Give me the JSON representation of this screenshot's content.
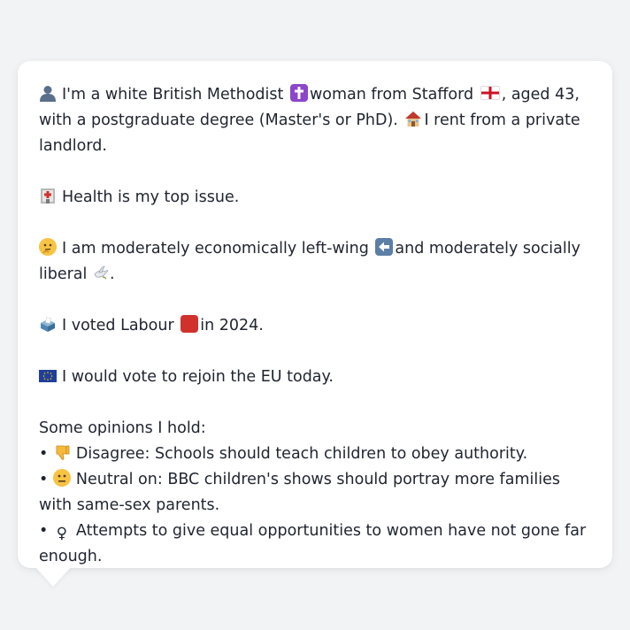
{
  "profile": {
    "intro_text_1": "I'm a white British Methodist",
    "intro_text_2": "woman from Stafford",
    "intro_text_3": ", aged 43, with a postgraduate degree (Master's or PhD).",
    "intro_text_4": "I rent from a private landlord.",
    "issue_text": "Health is my top issue.",
    "ideology_text_1": "I am moderately economically left-wing",
    "ideology_text_2": "and moderately socially liberal",
    "ideology_text_3": ".",
    "vote_text_1": "I voted Labour",
    "vote_text_2": "in 2024.",
    "eu_text": "I would vote to rejoin the EU today.",
    "opinions_heading": "Some opinions I hold:",
    "bullet": "•",
    "opinion_1": "Disagree: Schools should teach children to obey authority.",
    "opinion_2": "Neutral on: BBC children's shows should portray more families with same-sex parents.",
    "opinion_3": "Attempts to give equal opportunities to women have not gone far enough."
  },
  "icons": {
    "person": "person-silhouette-icon",
    "religion": "latin-cross-icon",
    "flag": "england-flag-icon",
    "housing": "house-icon",
    "health": "hospital-icon",
    "thinking": "thinking-face-icon",
    "left": "left-arrow-icon",
    "liberal": "dove-icon",
    "ballot": "ballot-box-icon",
    "labour": "red-square-icon",
    "eu": "eu-flag-icon",
    "disagree": "thumbs-down-icon",
    "neutral": "neutral-face-icon",
    "female": "female-sign-icon"
  },
  "colors": {
    "page_bg": "#f2f3f5",
    "card_bg": "#ffffff",
    "text": "#1f2430",
    "labour_red": "#d0312d",
    "eu_blue": "#1f3f99",
    "methodist_purple": "#8b46c9"
  }
}
